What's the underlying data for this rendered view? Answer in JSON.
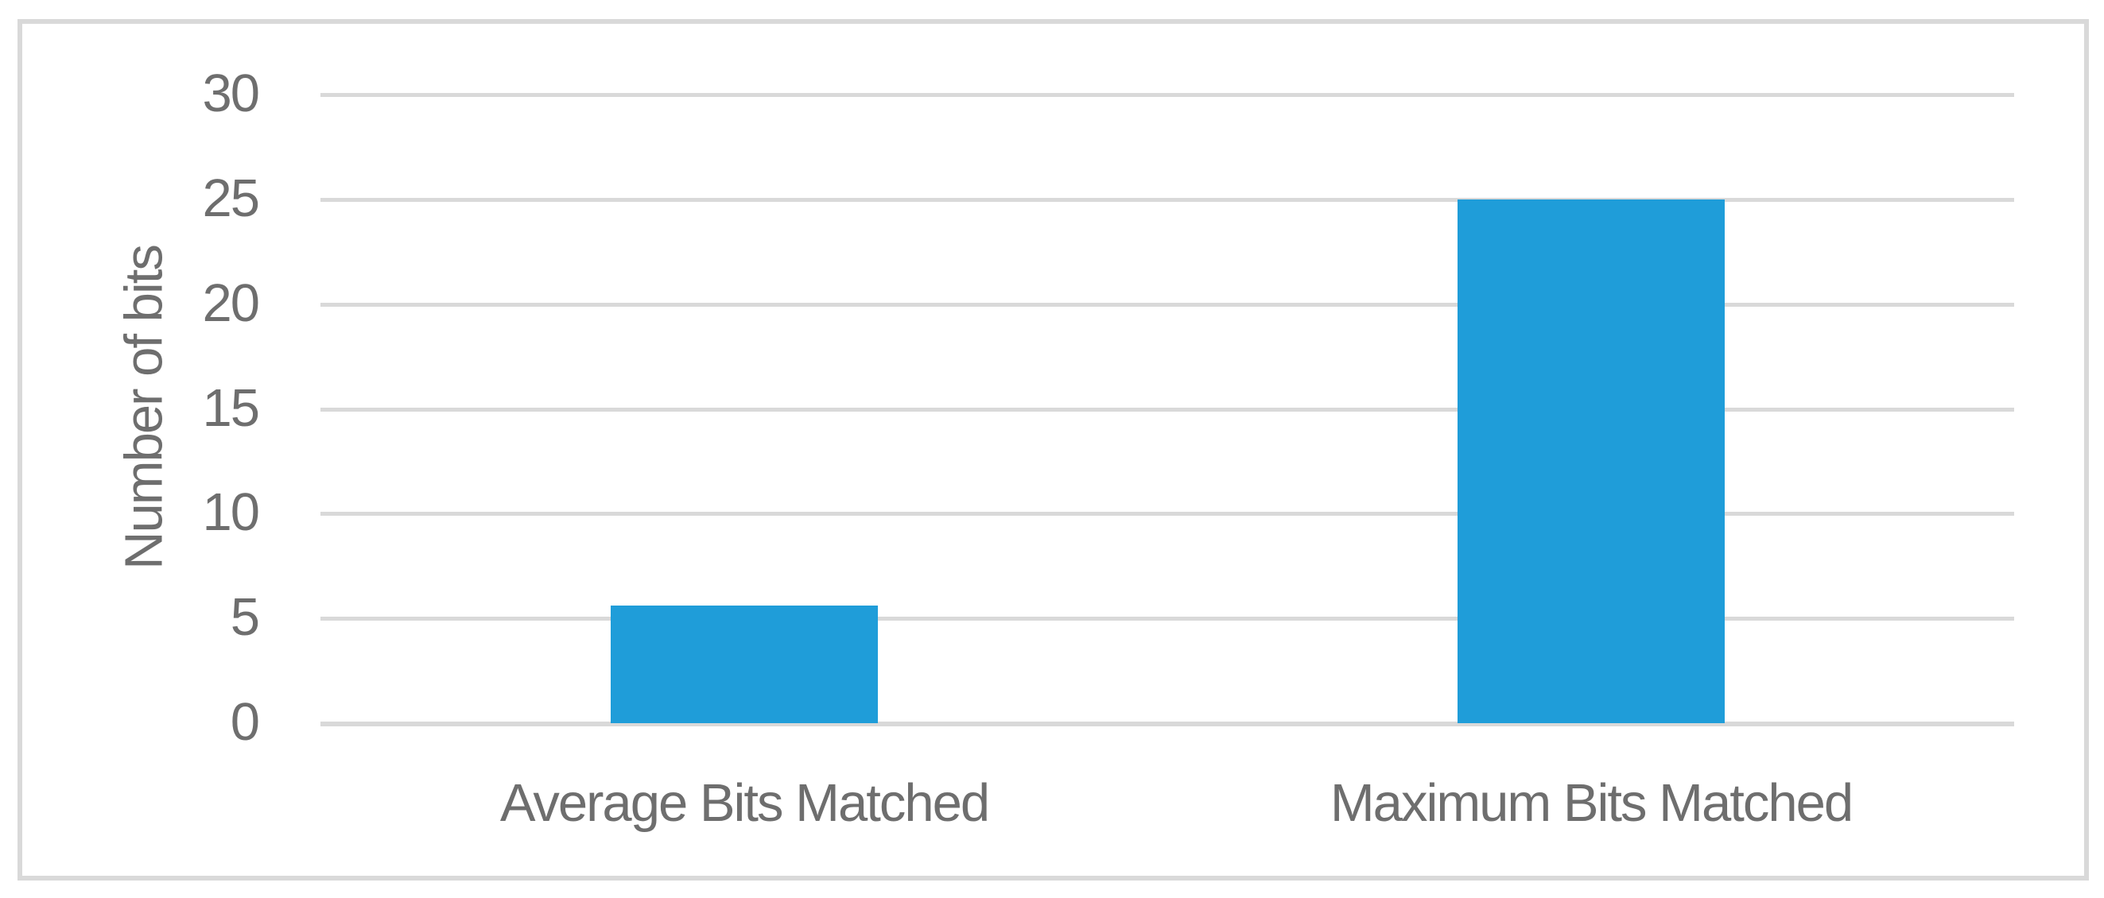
{
  "chart_data": {
    "type": "bar",
    "categories": [
      "Average Bits Matched",
      "Maximum Bits Matched"
    ],
    "values": [
      5.6,
      25
    ],
    "title": "",
    "xlabel": "",
    "ylabel": "Number of bits",
    "ylim": [
      0,
      30
    ],
    "yticks": [
      0,
      5,
      10,
      15,
      20,
      25,
      30
    ],
    "grid": "horizontal gridlines on",
    "legend": "none",
    "bar_color": "#1f9dd9",
    "gridline_color": "#d9d9d9",
    "frame_border_color": "#d9d9d9",
    "text_color": "#6e6e6e",
    "background_color": "#ffffff"
  }
}
